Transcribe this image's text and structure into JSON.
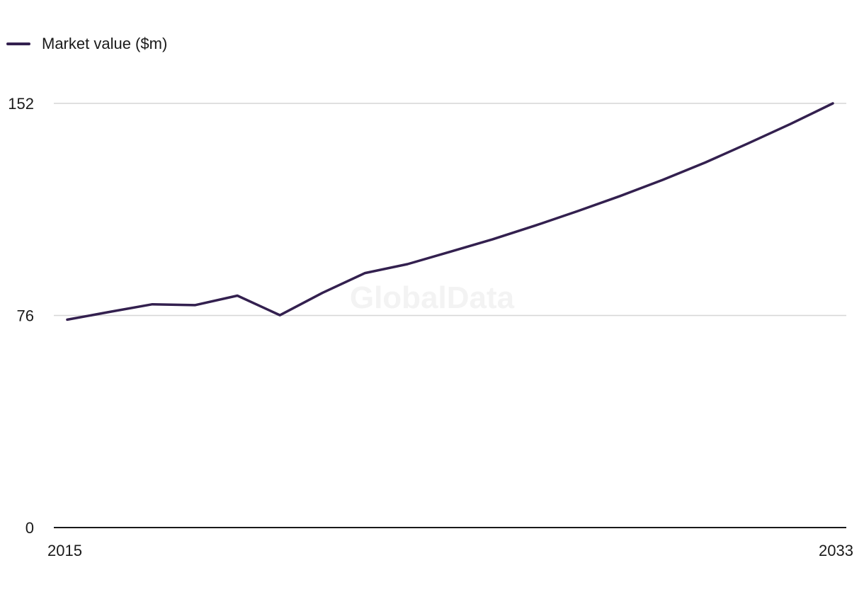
{
  "watermark": "GlobalData",
  "colors": {
    "series": "#33204f",
    "gridline": "#d6d6d6",
    "axis": "#1a1a1a"
  },
  "chart_data": {
    "type": "line",
    "grid": true,
    "legend_position": "top-left",
    "x": [
      2015,
      2016,
      2017,
      2018,
      2019,
      2020,
      2021,
      2022,
      2023,
      2024,
      2025,
      2026,
      2027,
      2028,
      2029,
      2030,
      2031,
      2032,
      2033
    ],
    "series": [
      {
        "name": "Market value ($m)",
        "values": [
          74.5,
          77.3,
          80.0,
          79.7,
          83.1,
          76.1,
          84.1,
          91.2,
          94.4,
          98.8,
          103.3,
          108.2,
          113.4,
          118.8,
          124.6,
          130.8,
          137.6,
          144.6,
          152.0
        ]
      }
    ],
    "ylim": [
      0,
      152
    ],
    "y_ticks": [
      "0",
      "76",
      "152"
    ],
    "x_tick_labels": [
      "2015",
      "2033"
    ]
  }
}
